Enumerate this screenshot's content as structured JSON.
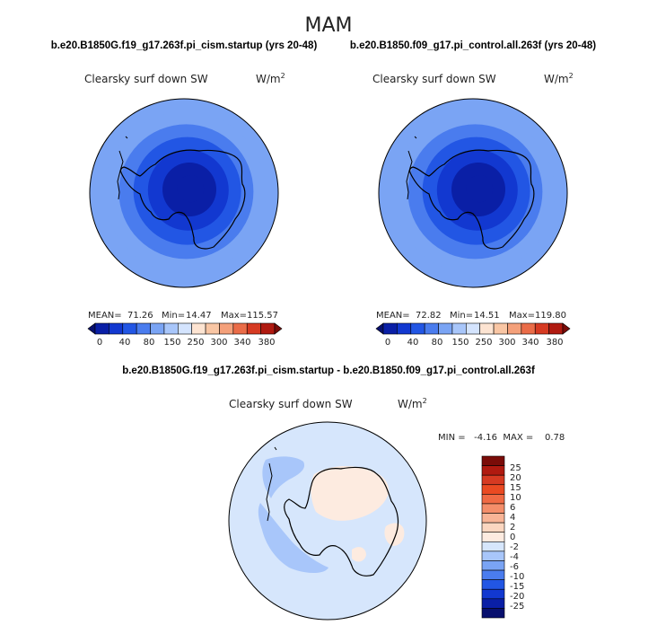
{
  "figure": {
    "season": "MAM",
    "difference_title": "b.e20.B1850G.f19_g17.263f.pi_cism.startup - b.e20.B1850.f09_g17.pi_control.all.263f"
  },
  "chart_data": [
    {
      "type": "heatmap",
      "projection": "south-polar-stereographic",
      "case_title": "b.e20.B1850G.f19_g17.263f.pi_cism.startup (yrs 20-48)",
      "variable": "Clearsky surf down SW",
      "units": "W/m",
      "units_exponent": "2",
      "mean_label": "MEAN=",
      "mean": "71.26",
      "min_label": "Min=",
      "min": "14.47",
      "max_label": "Max=",
      "max": "115.57",
      "colorbar_ticks": [
        "0",
        "40",
        "80",
        "150",
        "250",
        "300",
        "340",
        "380"
      ],
      "field_rings_from_center": [
        10,
        20,
        40,
        60,
        80,
        100,
        120
      ]
    },
    {
      "type": "heatmap",
      "projection": "south-polar-stereographic",
      "case_title": "b.e20.B1850.f09_g17.pi_control.all.263f (yrs 20-48)",
      "variable": "Clearsky surf down SW",
      "units": "W/m",
      "units_exponent": "2",
      "mean_label": "MEAN=",
      "mean": "72.82",
      "min_label": "Min=",
      "min": "14.51",
      "max_label": "Max=",
      "max": "119.80",
      "colorbar_ticks": [
        "0",
        "40",
        "80",
        "150",
        "250",
        "300",
        "340",
        "380"
      ],
      "field_rings_from_center": [
        10,
        20,
        40,
        60,
        80,
        100,
        120
      ]
    },
    {
      "type": "heatmap",
      "projection": "south-polar-stereographic",
      "variable": "Clearsky surf down SW",
      "units": "W/m",
      "units_exponent": "2",
      "min_max_label": "MIN =   -4.16  MAX =    0.78",
      "min": -4.16,
      "max": 0.78,
      "colorbar_ticks": [
        "25",
        "20",
        "15",
        "10",
        "6",
        "4",
        "2",
        "0",
        "-2",
        "-4",
        "-6",
        "-10",
        "-15",
        "-20",
        "-25"
      ]
    }
  ],
  "colors": {
    "abs_scale": [
      "#08106e",
      "#0a1fa6",
      "#1238d0",
      "#2256e4",
      "#4a7cee",
      "#7aa4f4",
      "#a8c6fa",
      "#d4e4fe",
      "#fde4d2",
      "#f9c6a4",
      "#f4a07a",
      "#ea6c48",
      "#d63a22",
      "#b01a10",
      "#7a0c08"
    ],
    "diff_scale_top_to_bottom": [
      "#7a0c08",
      "#b01a10",
      "#d63a22",
      "#ea4a22",
      "#f06a44",
      "#f48e6a",
      "#f8b496",
      "#fbd6c0",
      "#fdebe0",
      "#d6e6fc",
      "#a8c6fa",
      "#7aa4f4",
      "#4a7cee",
      "#2256e4",
      "#1238d0",
      "#0a1fa6",
      "#08106e"
    ],
    "diff_ocean": "#d6e6fc",
    "diff_positive": "#fdebe0",
    "diff_negative": "#a8c6fa",
    "coast": "#000000"
  }
}
